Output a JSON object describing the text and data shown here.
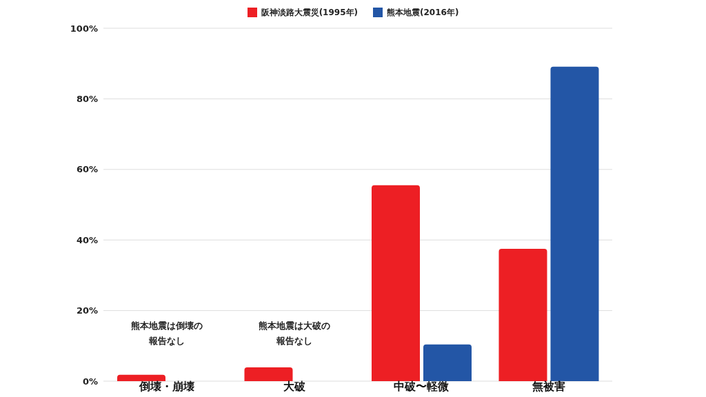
{
  "chart_data": {
    "type": "bar",
    "categories": [
      "倒壊・崩壊",
      "大破",
      "中破〜軽微",
      "無被害"
    ],
    "series": [
      {
        "name": "阪神淡路大震災(1995年)",
        "color": "#ed1f24",
        "values": [
          1.8,
          3.9,
          55.5,
          37.5
        ]
      },
      {
        "name": "熊本地震(2016年)",
        "color": "#2356a6",
        "values": [
          null,
          null,
          10.4,
          89.1
        ]
      }
    ],
    "ylim": [
      0,
      100
    ],
    "yticks": [
      {
        "value": 0,
        "label": "0%"
      },
      {
        "value": 20,
        "label": "20%"
      },
      {
        "value": 40,
        "label": "40%"
      },
      {
        "value": 60,
        "label": "60%"
      },
      {
        "value": 80,
        "label": "80%"
      },
      {
        "value": 100,
        "label": "100%"
      }
    ],
    "grid": "y",
    "legend": "top",
    "annotations": [
      "熊本地震は倒壊の報告なし",
      "熊本地震は大破の報告なし"
    ]
  }
}
